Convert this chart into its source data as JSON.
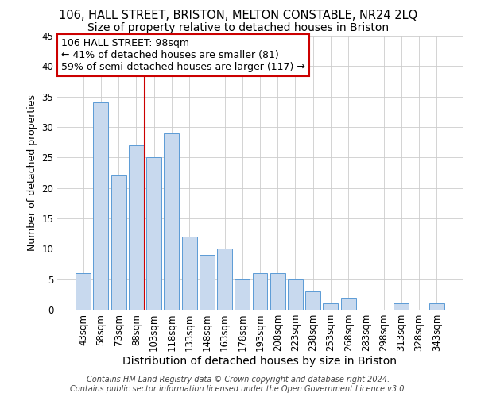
{
  "title_line1": "106, HALL STREET, BRISTON, MELTON CONSTABLE, NR24 2LQ",
  "title_line2": "Size of property relative to detached houses in Briston",
  "xlabel": "Distribution of detached houses by size in Briston",
  "ylabel": "Number of detached properties",
  "categories": [
    "43sqm",
    "58sqm",
    "73sqm",
    "88sqm",
    "103sqm",
    "118sqm",
    "133sqm",
    "148sqm",
    "163sqm",
    "178sqm",
    "193sqm",
    "208sqm",
    "223sqm",
    "238sqm",
    "253sqm",
    "268sqm",
    "283sqm",
    "298sqm",
    "313sqm",
    "328sqm",
    "343sqm"
  ],
  "values": [
    6,
    34,
    22,
    27,
    25,
    29,
    12,
    9,
    10,
    5,
    6,
    6,
    5,
    3,
    1,
    2,
    0,
    0,
    1,
    0,
    1
  ],
  "bar_color": "#c8d9ee",
  "bar_edge_color": "#5b9bd5",
  "vline_color": "#cc0000",
  "vline_x_index": 4,
  "annotation_line1": "106 HALL STREET: 98sqm",
  "annotation_line2": "← 41% of detached houses are smaller (81)",
  "annotation_line3": "59% of semi-detached houses are larger (117) →",
  "annotation_box_color": "#cc0000",
  "ylim": [
    0,
    45
  ],
  "yticks": [
    0,
    5,
    10,
    15,
    20,
    25,
    30,
    35,
    40,
    45
  ],
  "grid_color": "#cccccc",
  "background_color": "#ffffff",
  "footer_line1": "Contains HM Land Registry data © Crown copyright and database right 2024.",
  "footer_line2": "Contains public sector information licensed under the Open Government Licence v3.0.",
  "title1_fontsize": 10.5,
  "title2_fontsize": 10,
  "xlabel_fontsize": 10,
  "ylabel_fontsize": 9,
  "tick_fontsize": 8.5,
  "annotation_fontsize": 9,
  "footer_fontsize": 7
}
